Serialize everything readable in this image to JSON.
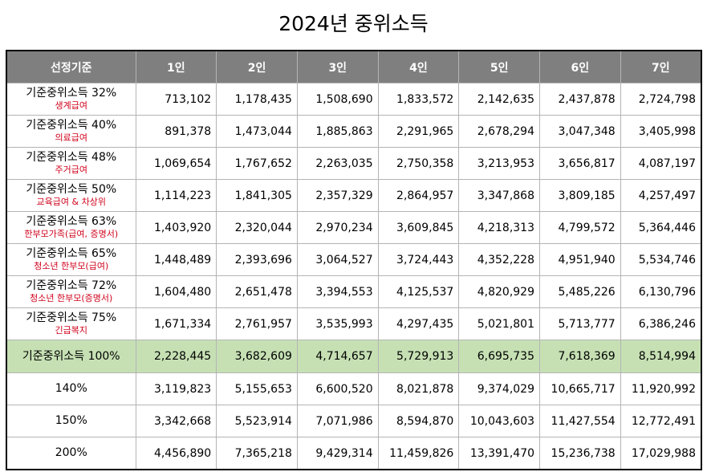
{
  "title": "2024년 중위소득",
  "header": [
    "선정기준",
    "1인",
    "2인",
    "3인",
    "4인",
    "5인",
    "6인",
    "7인"
  ],
  "rows": [
    {
      "label": "기준중위소득 32%",
      "sub": "생계급여",
      "values": [
        "713,102",
        "1,178,435",
        "1,508,690",
        "1,833,572",
        "2,142,635",
        "2,437,878",
        "2,724,798"
      ]
    },
    {
      "label": "기준중위소득 40%",
      "sub": "의료급여",
      "values": [
        "891,378",
        "1,473,044",
        "1,885,863",
        "2,291,965",
        "2,678,294",
        "3,047,348",
        "3,405,998"
      ]
    },
    {
      "label": "기준중위소득 48%",
      "sub": "주거급여",
      "values": [
        "1,069,654",
        "1,767,652",
        "2,263,035",
        "2,750,358",
        "3,213,953",
        "3,656,817",
        "4,087,197"
      ]
    },
    {
      "label": "기준중위소득 50%",
      "sub": "교육급여 & 차상위",
      "values": [
        "1,114,223",
        "1,841,305",
        "2,357,329",
        "2,864,957",
        "3,347,868",
        "3,809,185",
        "4,257,497"
      ]
    },
    {
      "label": "기준중위소득 63%",
      "sub": "한부모가족(급여, 증명서)",
      "values": [
        "1,403,920",
        "2,320,044",
        "2,970,234",
        "3,609,845",
        "4,218,313",
        "4,799,572",
        "5,364,446"
      ]
    },
    {
      "label": "기준중위소득 65%",
      "sub": "청소년 한부모(급여)",
      "values": [
        "1,448,489",
        "2,393,696",
        "3,064,527",
        "3,724,443",
        "4,352,228",
        "4,951,940",
        "5,534,746"
      ]
    },
    {
      "label": "기준중위소득 72%",
      "sub": "청소년 한부모(증명서)",
      "values": [
        "1,604,480",
        "2,651,478",
        "3,394,553",
        "4,125,537",
        "4,820,929",
        "5,485,226",
        "6,130,796"
      ]
    },
    {
      "label": "기준중위소득 75%",
      "sub": "긴급복지",
      "values": [
        "1,671,334",
        "2,761,957",
        "3,535,993",
        "4,297,435",
        "5,021,801",
        "5,713,777",
        "6,386,246"
      ]
    },
    {
      "label": "기준중위소득 100%",
      "sub": "",
      "highlight": true,
      "values": [
        "2,228,445",
        "3,682,609",
        "4,714,657",
        "5,729,913",
        "6,695,735",
        "7,618,369",
        "8,514,994"
      ]
    },
    {
      "label": "140%",
      "sub": "",
      "values": [
        "3,119,823",
        "5,155,653",
        "6,600,520",
        "8,021,878",
        "9,374,029",
        "10,665,717",
        "11,920,992"
      ]
    },
    {
      "label": "150%",
      "sub": "",
      "values": [
        "3,342,668",
        "5,523,914",
        "7,071,986",
        "8,594,870",
        "10,043,603",
        "11,427,554",
        "12,772,491"
      ]
    },
    {
      "label": "200%",
      "sub": "",
      "values": [
        "4,456,890",
        "7,365,218",
        "9,429,314",
        "11,459,826",
        "13,391,470",
        "15,236,738",
        "17,029,988"
      ]
    }
  ],
  "colors": {
    "header_bg": "#7f7f7f",
    "highlight_bg": "#c6e0b4",
    "sub_text": "#d0021b"
  }
}
